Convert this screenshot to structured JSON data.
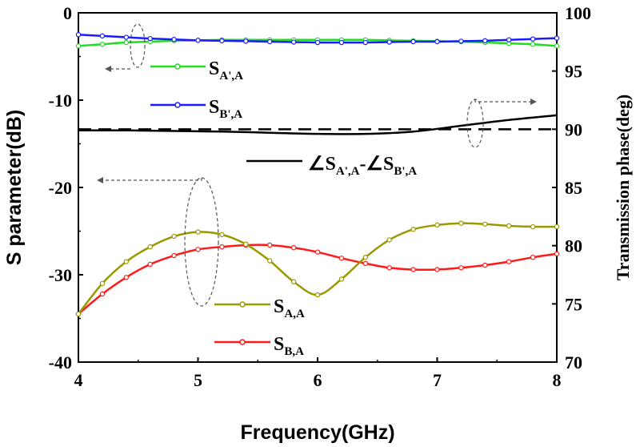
{
  "chart_data": {
    "type": "line",
    "xlabel": "Frequency(GHz)",
    "ylabel": "S parameter(dB)",
    "y2label": "Transmission phase(deg)",
    "xlim": [
      4,
      8
    ],
    "ylim": [
      -40,
      0
    ],
    "y2lim": [
      70,
      100
    ],
    "xticks": [
      "4",
      "5",
      "6",
      "7",
      "8"
    ],
    "yticks": [
      "0",
      "-10",
      "-20",
      "-30",
      "-40"
    ],
    "y2ticks": [
      "100",
      "95",
      "90",
      "85",
      "80",
      "75",
      "70"
    ],
    "series": [
      {
        "name": "S_{A',A}",
        "label_main": "S",
        "label_sub": "A',A",
        "axis": "left",
        "color": "#22dd22",
        "markers": true,
        "x": [
          4.0,
          4.2,
          4.4,
          4.6,
          4.8,
          5.0,
          5.2,
          5.4,
          5.6,
          5.8,
          6.0,
          6.2,
          6.4,
          6.6,
          6.8,
          7.0,
          7.2,
          7.4,
          7.6,
          7.8,
          8.0
        ],
        "y": [
          -3.8,
          -3.6,
          -3.4,
          -3.3,
          -3.2,
          -3.15,
          -3.1,
          -3.1,
          -3.1,
          -3.1,
          -3.1,
          -3.1,
          -3.1,
          -3.15,
          -3.2,
          -3.25,
          -3.3,
          -3.4,
          -3.5,
          -3.6,
          -3.8
        ]
      },
      {
        "name": "S_{B',A}",
        "label_main": "S",
        "label_sub": "B',A",
        "axis": "left",
        "color": "#1a1aff",
        "markers": true,
        "x": [
          4.0,
          4.2,
          4.4,
          4.6,
          4.8,
          5.0,
          5.2,
          5.4,
          5.6,
          5.8,
          6.0,
          6.2,
          6.4,
          6.6,
          6.8,
          7.0,
          7.2,
          7.4,
          7.6,
          7.8,
          8.0
        ],
        "y": [
          -2.5,
          -2.65,
          -2.8,
          -2.95,
          -3.05,
          -3.15,
          -3.2,
          -3.25,
          -3.3,
          -3.35,
          -3.4,
          -3.4,
          -3.4,
          -3.35,
          -3.3,
          -3.3,
          -3.25,
          -3.2,
          -3.1,
          -3.0,
          -2.9
        ]
      },
      {
        "name": "S_{A,A}",
        "label_main": "S",
        "label_sub": "A,A",
        "axis": "left",
        "color": "#999900",
        "markers": true,
        "x": [
          4.0,
          4.2,
          4.4,
          4.6,
          4.8,
          5.0,
          5.2,
          5.4,
          5.6,
          5.8,
          6.0,
          6.2,
          6.4,
          6.6,
          6.8,
          7.0,
          7.2,
          7.4,
          7.6,
          7.8,
          8.0
        ],
        "y": [
          -34.5,
          -31.0,
          -28.5,
          -26.8,
          -25.6,
          -25.1,
          -25.4,
          -26.5,
          -28.4,
          -30.8,
          -32.3,
          -30.5,
          -28.0,
          -26.0,
          -24.8,
          -24.3,
          -24.1,
          -24.2,
          -24.4,
          -24.5,
          -24.5
        ]
      },
      {
        "name": "S_{B,A}",
        "label_main": "S",
        "label_sub": "B,A",
        "axis": "left",
        "color": "#ff1a1a",
        "markers": true,
        "x": [
          4.0,
          4.2,
          4.4,
          4.6,
          4.8,
          5.0,
          5.2,
          5.4,
          5.6,
          5.8,
          6.0,
          6.2,
          6.4,
          6.6,
          6.8,
          7.0,
          7.2,
          7.4,
          7.6,
          7.8,
          8.0
        ],
        "y": [
          -34.5,
          -32.2,
          -30.3,
          -28.8,
          -27.8,
          -27.1,
          -26.8,
          -26.6,
          -26.6,
          -26.9,
          -27.4,
          -28.1,
          -28.7,
          -29.2,
          -29.4,
          -29.4,
          -29.2,
          -28.9,
          -28.5,
          -28.0,
          -27.6
        ]
      },
      {
        "name": "∠S_{A',A}-∠S_{B',A}",
        "axis": "right",
        "color": "#000000",
        "markers": false,
        "x": [
          4.0,
          4.4,
          4.8,
          5.2,
          5.6,
          6.0,
          6.4,
          6.8,
          7.2,
          7.6,
          8.0
        ],
        "y": [
          89.9,
          89.9,
          89.85,
          89.8,
          89.7,
          89.6,
          89.6,
          89.8,
          90.3,
          90.8,
          91.2
        ]
      },
      {
        "name": "90° reference",
        "axis": "right",
        "color": "#000000",
        "markers": false,
        "dashed": true,
        "x": [
          4.0,
          8.0
        ],
        "y": [
          90.0,
          90.0
        ]
      }
    ],
    "phase_legend": {
      "text1": "∠S",
      "sub1": "A',A",
      "text2": "-∠S",
      "sub2": "B',A"
    },
    "annotations": [
      "arrow-left-to-S-axis",
      "arrow-right-to-phase-axis",
      "arrow-left-to-S-axis-lower"
    ]
  }
}
